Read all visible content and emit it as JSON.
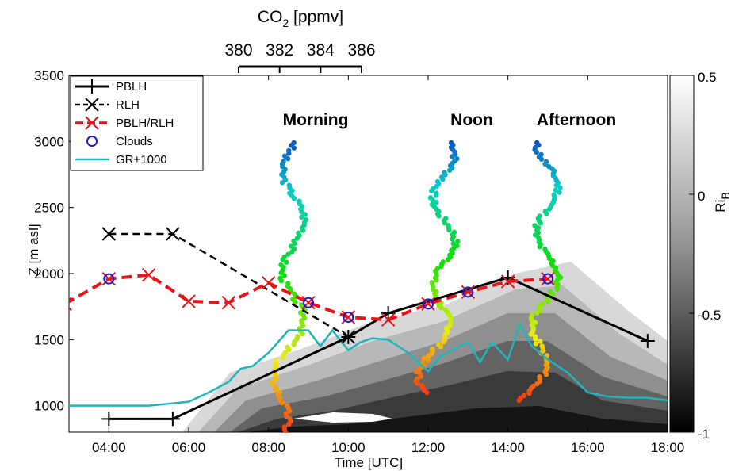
{
  "chart_data": {
    "type": "line",
    "xlabel": "Time [UTC]",
    "ylabel": "Z [m asl]",
    "xlim": [
      3,
      18
    ],
    "ylim": [
      800,
      3500
    ],
    "x_ticks": [
      4,
      6,
      8,
      10,
      12,
      14,
      16,
      18
    ],
    "x_tick_labels": [
      "04:00",
      "06:00",
      "08:00",
      "10:00",
      "12:00",
      "14:00",
      "16:00",
      "18:00"
    ],
    "y_ticks": [
      1000,
      1500,
      2000,
      2500,
      3000,
      3500
    ],
    "y_tick_labels": [
      "1000",
      "1500",
      "2000",
      "2500",
      "3000",
      "3500"
    ],
    "co2_axis": {
      "label_main": "CO",
      "label_sub": "2",
      "label_unit": " [ppmv]",
      "range": [
        380,
        386
      ],
      "tick_values": [
        380,
        382,
        384,
        386
      ],
      "tick_labels": [
        "380",
        "382",
        "384",
        "386"
      ]
    },
    "colorbar": {
      "label_main": "Ri",
      "label_sub": "B",
      "range": [
        -1,
        0.5
      ],
      "tick_values": [
        0.5,
        0,
        -0.5,
        -1
      ],
      "tick_labels": [
        "0.5",
        "0",
        "-0.5",
        "-1"
      ]
    },
    "annotations": [
      "Morning",
      "Noon",
      "Afternoon"
    ],
    "legend_position": "top-left",
    "series": [
      {
        "name": "PBLH",
        "color": "#000000",
        "marker": "plus",
        "x": [
          4.0,
          5.6,
          10.0,
          11.0,
          14.0,
          17.5
        ],
        "y": [
          900,
          900,
          1520,
          1700,
          1970,
          1490
        ]
      },
      {
        "name": "RLH",
        "color": "#000000",
        "marker": "x",
        "x": [
          4.0,
          5.6,
          10.0
        ],
        "y": [
          2300,
          2300,
          1520
        ]
      },
      {
        "name": "PBLH/RLH",
        "color": "#e8141a",
        "marker": "x",
        "x": [
          2.9,
          4.0,
          5.0,
          6.0,
          7.0,
          8.0,
          9.0,
          10.0,
          11.0,
          12.0,
          13.0,
          14.0,
          15.0
        ],
        "y": [
          1770,
          1960,
          1990,
          1790,
          1780,
          1930,
          1780,
          1670,
          1650,
          1770,
          1860,
          1940,
          1960
        ]
      },
      {
        "name": "Clouds",
        "color": "#1a1adb",
        "marker": "circle",
        "x": [
          4.0,
          9.0,
          10.0,
          12.0,
          13.0,
          15.0
        ],
        "y": [
          1960,
          1780,
          1670,
          1770,
          1860,
          1960
        ]
      },
      {
        "name": "GR+1000",
        "color": "#1fb5b9",
        "marker": "none",
        "x": [
          3.0,
          5.0,
          6.0,
          6.5,
          7.0,
          7.3,
          7.6,
          8.0,
          8.5,
          9.0,
          9.3,
          9.6,
          10.0,
          10.3,
          10.6,
          11.0,
          11.5,
          12.0,
          12.3,
          12.6,
          13.0,
          13.3,
          13.6,
          14.0,
          14.3,
          14.6,
          15.0,
          15.5,
          16.0,
          16.5,
          17.0,
          17.5,
          18.0
        ],
        "y": [
          1000,
          1000,
          1030,
          1100,
          1180,
          1280,
          1300,
          1400,
          1570,
          1570,
          1450,
          1570,
          1420,
          1480,
          1510,
          1500,
          1400,
          1260,
          1370,
          1420,
          1480,
          1330,
          1480,
          1350,
          1620,
          1450,
          1350,
          1250,
          1100,
          1070,
          1060,
          1060,
          1040
        ]
      }
    ]
  }
}
